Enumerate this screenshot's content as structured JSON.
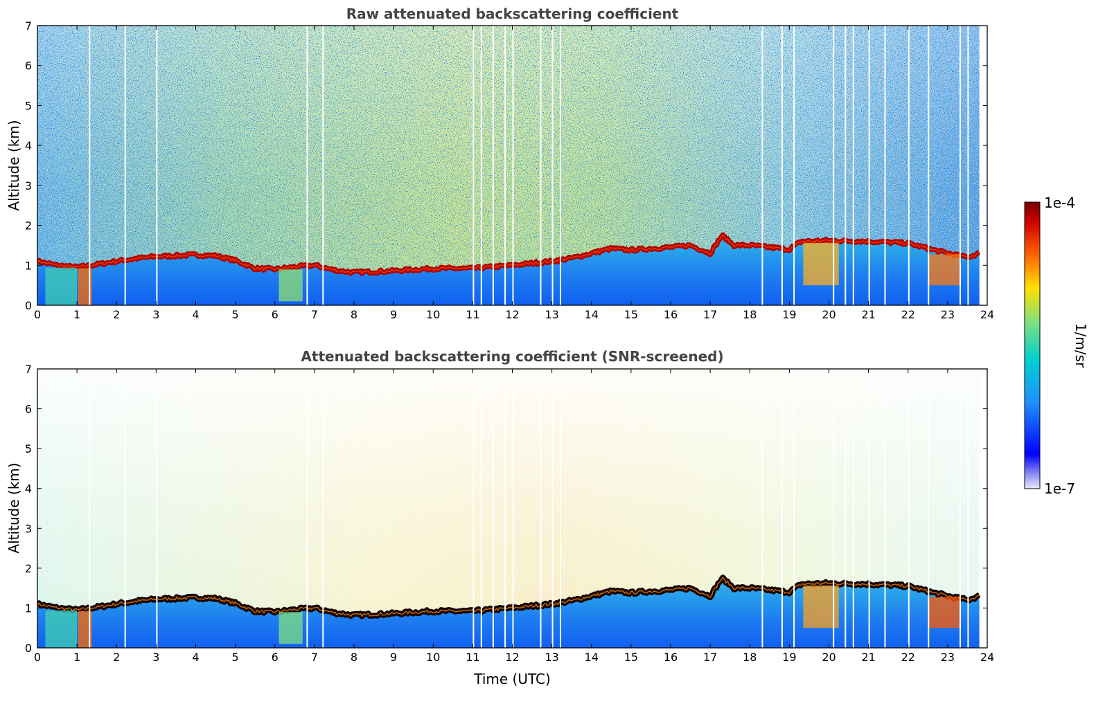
{
  "chart_data": [
    {
      "type": "heatmap",
      "title": "Raw attenuated backscattering coefficient",
      "xlabel": "",
      "ylabel": "Altitude (km)",
      "xlim": [
        0,
        24
      ],
      "ylim": [
        0,
        7
      ],
      "xticks": [
        "0",
        "1",
        "2",
        "3",
        "4",
        "5",
        "6",
        "7",
        "8",
        "9",
        "10",
        "11",
        "12",
        "13",
        "14",
        "15",
        "16",
        "17",
        "18",
        "19",
        "20",
        "21",
        "22",
        "23",
        "24"
      ],
      "yticks": [
        "0",
        "1",
        "2",
        "3",
        "4",
        "5",
        "6",
        "7"
      ],
      "data_end_hour": 23.8,
      "layer_top_km": [
        {
          "t": 0,
          "z": 1.1
        },
        {
          "t": 0.5,
          "z": 1.0
        },
        {
          "t": 1,
          "z": 0.95
        },
        {
          "t": 1.5,
          "z": 1.02
        },
        {
          "t": 2,
          "z": 1.1
        },
        {
          "t": 2.5,
          "z": 1.17
        },
        {
          "t": 3,
          "z": 1.22
        },
        {
          "t": 3.5,
          "z": 1.24
        },
        {
          "t": 4,
          "z": 1.26
        },
        {
          "t": 4.5,
          "z": 1.24
        },
        {
          "t": 5,
          "z": 1.12
        },
        {
          "t": 5.5,
          "z": 0.92
        },
        {
          "t": 6,
          "z": 0.9
        },
        {
          "t": 6.5,
          "z": 0.96
        },
        {
          "t": 7,
          "z": 1.0
        },
        {
          "t": 7.5,
          "z": 0.88
        },
        {
          "t": 8,
          "z": 0.82
        },
        {
          "t": 9,
          "z": 0.86
        },
        {
          "t": 10,
          "z": 0.92
        },
        {
          "t": 11,
          "z": 0.92
        },
        {
          "t": 12,
          "z": 1.0
        },
        {
          "t": 13,
          "z": 1.1
        },
        {
          "t": 13.5,
          "z": 1.18
        },
        {
          "t": 14,
          "z": 1.3
        },
        {
          "t": 14.5,
          "z": 1.42
        },
        {
          "t": 15,
          "z": 1.38
        },
        {
          "t": 15.5,
          "z": 1.42
        },
        {
          "t": 16,
          "z": 1.45
        },
        {
          "t": 16.5,
          "z": 1.5
        },
        {
          "t": 17,
          "z": 1.3
        },
        {
          "t": 17.3,
          "z": 1.75
        },
        {
          "t": 17.6,
          "z": 1.5
        },
        {
          "t": 18,
          "z": 1.5
        },
        {
          "t": 18.5,
          "z": 1.45
        },
        {
          "t": 19,
          "z": 1.4
        },
        {
          "t": 19.3,
          "z": 1.6
        },
        {
          "t": 20,
          "z": 1.62
        },
        {
          "t": 21,
          "z": 1.6
        },
        {
          "t": 22,
          "z": 1.55
        },
        {
          "t": 22.5,
          "z": 1.42
        },
        {
          "t": 23,
          "z": 1.3
        },
        {
          "t": 23.5,
          "z": 1.2
        },
        {
          "t": 23.8,
          "z": 1.3
        }
      ]
    },
    {
      "type": "heatmap",
      "title": "Attenuated backscattering coefficient (SNR-screened)",
      "xlabel": "Time (UTC)",
      "ylabel": "Altitude (km)",
      "xlim": [
        0,
        24
      ],
      "ylim": [
        0,
        7
      ],
      "xticks": [
        "0",
        "1",
        "2",
        "3",
        "4",
        "5",
        "6",
        "7",
        "8",
        "9",
        "10",
        "11",
        "12",
        "13",
        "14",
        "15",
        "16",
        "17",
        "18",
        "19",
        "20",
        "21",
        "22",
        "23",
        "24"
      ],
      "yticks": [
        "0",
        "1",
        "2",
        "3",
        "4",
        "5",
        "6",
        "7"
      ],
      "data_end_hour": 23.8
    }
  ],
  "colorbar": {
    "label": "1/m/sr",
    "max_label": "1e-4",
    "min_label": "1e-7",
    "scale": "log",
    "colormap": [
      "#e8e8fa",
      "#0000ff",
      "#1e90ff",
      "#00d0d0",
      "#7fe07f",
      "#ffe000",
      "#ff6000",
      "#d00000",
      "#7a0000"
    ]
  },
  "gap_hours": [
    1.3,
    2.2,
    3.0,
    6.8,
    7.2,
    11.0,
    11.2,
    11.5,
    11.8,
    12.0,
    12.7,
    13.0,
    13.2,
    18.3,
    18.8,
    19.1,
    20.1,
    20.4,
    20.6,
    21.0,
    21.4,
    22.0,
    22.5,
    23.3,
    23.5
  ]
}
